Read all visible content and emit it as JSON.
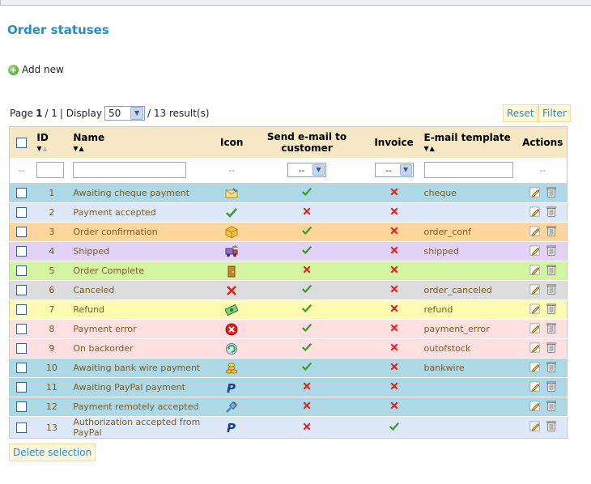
{
  "page": {
    "title": "Order statuses",
    "add_new": "Add new"
  },
  "pager": {
    "page_label": "Page",
    "page_current": "1",
    "page_total": "/ 1",
    "display_label": "| Display",
    "per_page": "50",
    "results": "/ 13 result(s)",
    "reset_label": "Reset",
    "filter_label": "Filter"
  },
  "table": {
    "headers": {
      "id": "ID",
      "name": "Name",
      "icon": "Icon",
      "send_email": "Send e-mail to customer",
      "invoice": "Invoice",
      "template": "E-mail template",
      "actions": "Actions"
    },
    "filter": {
      "dash": "--",
      "send_email_value": "--",
      "invoice_value": "--"
    },
    "rows": [
      {
        "id": "1",
        "name": "Awaiting cheque payment",
        "icon": "envelope-icon",
        "send": true,
        "invoice": false,
        "template": "cheque",
        "bg": "#add8e6"
      },
      {
        "id": "2",
        "name": "Payment accepted",
        "icon": "check-icon",
        "send": false,
        "invoice": false,
        "template": "",
        "bg": "#dde9f8"
      },
      {
        "id": "3",
        "name": "Order confirmation",
        "icon": "box-icon",
        "send": true,
        "invoice": false,
        "template": "order_conf",
        "bg": "#ffd699"
      },
      {
        "id": "4",
        "name": "Shipped",
        "icon": "truck-icon",
        "send": true,
        "invoice": false,
        "template": "shipped",
        "bg": "#e3d2f6"
      },
      {
        "id": "5",
        "name": "Order Complete",
        "icon": "door-icon",
        "send": false,
        "invoice": false,
        "template": "",
        "bg": "#d4f5a0"
      },
      {
        "id": "6",
        "name": "Canceled",
        "icon": "cross-icon",
        "send": true,
        "invoice": false,
        "template": "order_canceled",
        "bg": "#dcdcdc"
      },
      {
        "id": "7",
        "name": "Refund",
        "icon": "money-icon",
        "send": true,
        "invoice": false,
        "template": "refund",
        "bg": "#fffbb0"
      },
      {
        "id": "8",
        "name": "Payment error",
        "icon": "error-icon",
        "send": true,
        "invoice": false,
        "template": "payment_error",
        "bg": "#ffdfdf"
      },
      {
        "id": "9",
        "name": "On backorder",
        "icon": "refresh-icon",
        "send": true,
        "invoice": false,
        "template": "outofstock",
        "bg": "#ffdfdf"
      },
      {
        "id": "10",
        "name": "Awaiting bank wire payment",
        "icon": "coins-icon",
        "send": true,
        "invoice": false,
        "template": "bankwire",
        "bg": "#add8e6"
      },
      {
        "id": "11",
        "name": "Awaiting PayPal payment",
        "icon": "paypal-icon",
        "send": false,
        "invoice": false,
        "template": "",
        "bg": "#add8e6"
      },
      {
        "id": "12",
        "name": "Payment remotely accepted",
        "icon": "remote-icon",
        "send": false,
        "invoice": false,
        "template": "",
        "bg": "#add8e6"
      },
      {
        "id": "13",
        "name": "Authorization accepted from PayPal",
        "icon": "paypal-icon",
        "send": false,
        "invoice": true,
        "template": "",
        "bg": "#dde9f8"
      }
    ]
  },
  "footer": {
    "delete_selection": "Delete selection"
  },
  "colors": {
    "title": "#268ccd",
    "header_bg": "#f6e7c5",
    "check": "#3a9c2a",
    "cross": "#e02020"
  }
}
